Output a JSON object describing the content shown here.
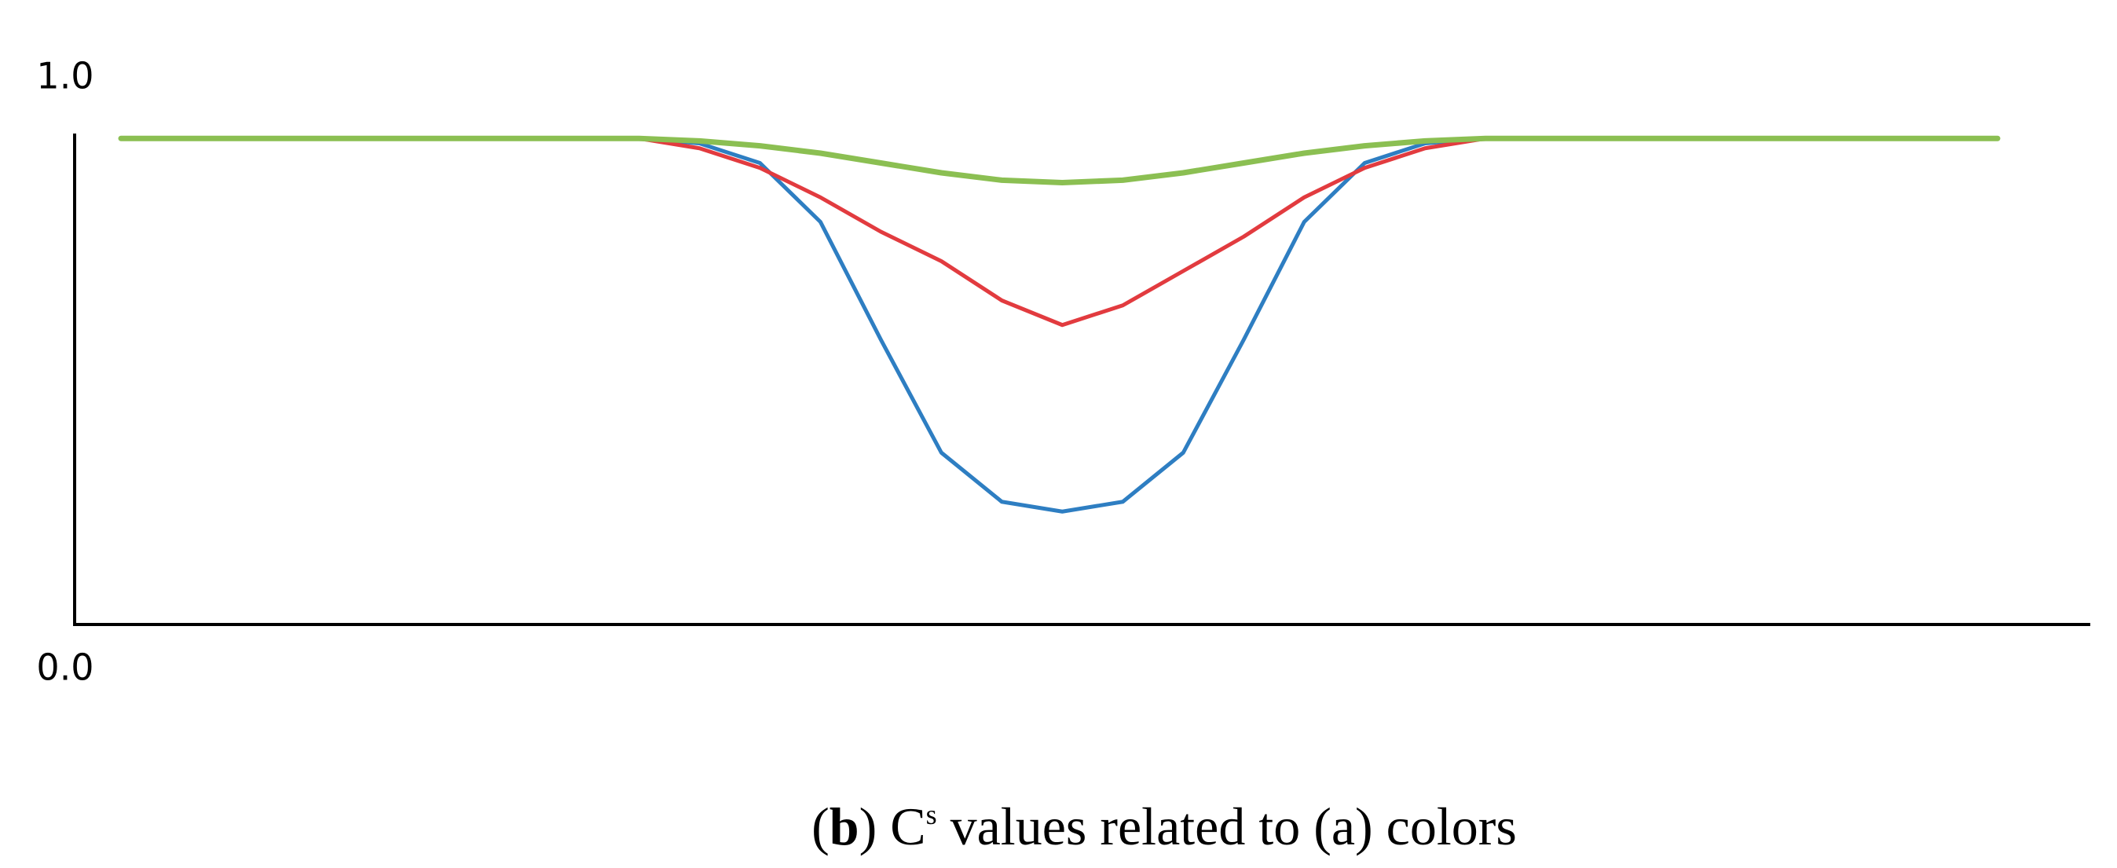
{
  "chart_data": {
    "type": "line",
    "caption": {
      "open": "(",
      "label": "b",
      "symbol": ") C",
      "superscript": "s",
      "rest": " values related to (a) colors"
    },
    "x": [
      2.3,
      10,
      20,
      28,
      31,
      34,
      37,
      40,
      43,
      46,
      49,
      52,
      55,
      58,
      61,
      64,
      67,
      70,
      80,
      95.4
    ],
    "xlim": [
      0,
      100
    ],
    "ylim": [
      0,
      1
    ],
    "yticks": [
      {
        "value": 0,
        "label": "0.0"
      },
      {
        "value": 1,
        "label": "1.0"
      }
    ],
    "series": [
      {
        "color": "#2e7ec2",
        "values": [
          0.99,
          0.99,
          0.99,
          0.99,
          0.98,
          0.94,
          0.82,
          0.58,
          0.35,
          0.25,
          0.23,
          0.25,
          0.35,
          0.58,
          0.82,
          0.94,
          0.98,
          0.99,
          0.99,
          0.99
        ]
      },
      {
        "color": "#e23b3f",
        "values": [
          0.99,
          0.99,
          0.99,
          0.99,
          0.97,
          0.93,
          0.87,
          0.8,
          0.74,
          0.66,
          0.61,
          0.65,
          0.72,
          0.79,
          0.87,
          0.93,
          0.97,
          0.99,
          0.99,
          0.99
        ]
      },
      {
        "color": "#8bbf52",
        "values": [
          0.99,
          0.99,
          0.99,
          0.99,
          0.985,
          0.975,
          0.96,
          0.94,
          0.92,
          0.905,
          0.9,
          0.905,
          0.92,
          0.94,
          0.96,
          0.975,
          0.985,
          0.99,
          0.99,
          0.99
        ]
      }
    ]
  }
}
